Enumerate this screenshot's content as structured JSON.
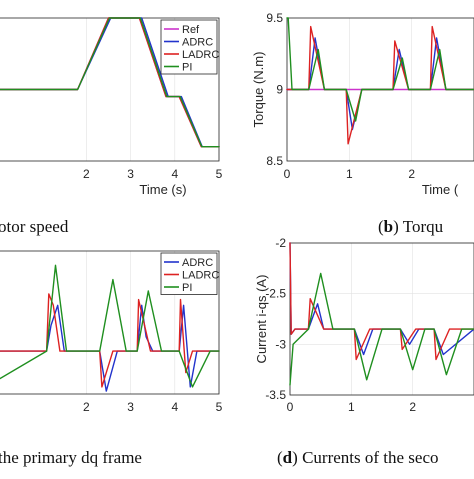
{
  "figure": {
    "captions": [
      {
        "label": "",
        "text": "otor speed"
      },
      {
        "label": "b",
        "text": " Torqu"
      },
      {
        "label": "",
        "text": "the primary dq frame"
      },
      {
        "label": "d",
        "text": " Currents of the seco"
      }
    ]
  },
  "colors": {
    "Ref": "#cc33cc",
    "ADRC": "#2233cc",
    "LADRC": "#dd2222",
    "PI": "#1f8f1f"
  },
  "chart_data": [
    {
      "id": "a",
      "type": "line",
      "xlabel": "Time (s)",
      "ylabel": "",
      "xlim": [
        0,
        5
      ],
      "ylim": [
        0,
        1
      ],
      "xticks": [
        2,
        3,
        4,
        5
      ],
      "yticks": [],
      "grid": true,
      "legend": {
        "placement": "top-right",
        "entries": [
          "Ref",
          "ADRC",
          "LADRC",
          "PI"
        ]
      },
      "series": [
        {
          "name": "Ref",
          "x": [
            0,
            1.8,
            2.5,
            3.2,
            3.8,
            4.1,
            4.6,
            5
          ],
          "y": [
            0.5,
            0.5,
            1.0,
            1.0,
            0.45,
            0.45,
            0.1,
            0.1
          ]
        },
        {
          "name": "ADRC",
          "x": [
            0,
            1.8,
            2.55,
            3.25,
            3.85,
            4.15,
            4.62,
            5
          ],
          "y": [
            0.5,
            0.5,
            1.0,
            1.0,
            0.45,
            0.45,
            0.1,
            0.1
          ]
        },
        {
          "name": "LADRC",
          "x": [
            0,
            1.8,
            2.5,
            3.2,
            3.8,
            4.1,
            4.6,
            5
          ],
          "y": [
            0.5,
            0.5,
            1.0,
            1.0,
            0.45,
            0.45,
            0.1,
            0.1
          ]
        },
        {
          "name": "PI",
          "x": [
            0,
            1.8,
            2.52,
            3.22,
            3.82,
            4.12,
            4.61,
            5
          ],
          "y": [
            0.5,
            0.5,
            1.0,
            1.0,
            0.45,
            0.45,
            0.1,
            0.1
          ]
        }
      ]
    },
    {
      "id": "b",
      "type": "line",
      "xlabel": "Time (",
      "ylabel": "Torque (N.m)",
      "xlim": [
        0,
        3
      ],
      "ylim": [
        8.5,
        9.5
      ],
      "xticks": [
        0,
        1,
        2
      ],
      "yticks": [
        8.5,
        9,
        9.5
      ],
      "grid": true,
      "series": [
        {
          "name": "Ref",
          "x": [
            0,
            3
          ],
          "y": [
            9.0,
            9.0
          ]
        },
        {
          "name": "ADRC",
          "x": [
            0,
            0.35,
            0.45,
            0.6,
            0.95,
            1.05,
            1.2,
            1.7,
            1.8,
            1.95,
            2.3,
            2.4,
            2.55,
            3
          ],
          "y": [
            9.0,
            9.0,
            9.36,
            9.0,
            9.0,
            8.72,
            9.0,
            9.0,
            9.28,
            9.0,
            9.0,
            9.36,
            9.0,
            9.0
          ]
        },
        {
          "name": "LADRC",
          "x": [
            0,
            0.35,
            0.38,
            0.6,
            0.95,
            0.98,
            1.2,
            1.7,
            1.73,
            1.95,
            2.3,
            2.33,
            2.55,
            3
          ],
          "y": [
            9.0,
            9.0,
            9.44,
            9.0,
            9.0,
            8.62,
            9.0,
            9.0,
            9.34,
            9.0,
            9.0,
            9.44,
            9.0,
            9.0
          ]
        },
        {
          "name": "PI",
          "x": [
            0,
            0.02,
            0.08,
            0.35,
            0.5,
            0.6,
            0.95,
            1.1,
            1.2,
            1.7,
            1.85,
            1.95,
            2.3,
            2.45,
            2.55,
            3
          ],
          "y": [
            9.5,
            9.5,
            9.0,
            9.0,
            9.28,
            9.0,
            9.0,
            8.78,
            9.0,
            9.0,
            9.22,
            9.0,
            9.0,
            9.28,
            9.0,
            9.0
          ]
        }
      ]
    },
    {
      "id": "c",
      "type": "line",
      "xlabel": "",
      "ylabel": "",
      "xlim": [
        0,
        5
      ],
      "ylim": [
        0,
        1
      ],
      "xticks": [
        2,
        3,
        4,
        5
      ],
      "yticks": [],
      "grid": true,
      "legend": {
        "placement": "top-right",
        "entries": [
          "ADRC",
          "LADRC",
          "PI"
        ]
      },
      "series": [
        {
          "name": "ADRC",
          "x": [
            0,
            1.1,
            1.2,
            1.35,
            1.5,
            2.3,
            2.45,
            2.7,
            3.15,
            3.25,
            3.35,
            3.5,
            4.1,
            4.2,
            4.35,
            4.5,
            5
          ],
          "y": [
            0.3,
            0.3,
            0.48,
            0.62,
            0.3,
            0.3,
            0.02,
            0.3,
            0.3,
            0.62,
            0.4,
            0.3,
            0.3,
            0.62,
            0.05,
            0.3,
            0.3
          ]
        },
        {
          "name": "LADRC",
          "x": [
            0,
            1.1,
            1.15,
            1.25,
            1.4,
            2.3,
            2.35,
            2.6,
            3.15,
            3.18,
            3.3,
            3.45,
            4.1,
            4.13,
            4.25,
            4.4,
            5
          ],
          "y": [
            0.3,
            0.3,
            0.7,
            0.62,
            0.3,
            0.3,
            0.05,
            0.3,
            0.3,
            0.66,
            0.5,
            0.3,
            0.3,
            0.66,
            0.15,
            0.3,
            0.3
          ]
        },
        {
          "name": "PI",
          "x": [
            0,
            1.1,
            1.3,
            1.55,
            2.3,
            2.6,
            2.9,
            3.15,
            3.4,
            3.7,
            4.1,
            4.4,
            4.8,
            5
          ],
          "y": [
            0.1,
            0.3,
            0.9,
            0.3,
            0.3,
            0.8,
            0.3,
            0.3,
            0.72,
            0.3,
            0.3,
            0.05,
            0.3,
            0.3
          ]
        }
      ]
    },
    {
      "id": "d",
      "type": "line",
      "xlabel": "",
      "ylabel": "Current i-qs (A)",
      "xlim": [
        0,
        3
      ],
      "ylim": [
        -3.5,
        -2
      ],
      "xticks": [
        0,
        1,
        2
      ],
      "yticks": [
        -2,
        -2.5,
        -3,
        -3.5
      ],
      "grid": true,
      "series": [
        {
          "name": "ADRC",
          "x": [
            0,
            0.02,
            0.08,
            0.3,
            0.45,
            0.55,
            0.75,
            1.05,
            1.2,
            1.35,
            1.8,
            1.95,
            2.1,
            2.35,
            2.5,
            3
          ],
          "y": [
            -2.0,
            -2.9,
            -2.85,
            -2.85,
            -2.6,
            -2.85,
            -2.85,
            -2.85,
            -3.1,
            -2.85,
            -2.85,
            -3.0,
            -2.85,
            -2.85,
            -3.1,
            -2.85
          ]
        },
        {
          "name": "LADRC",
          "x": [
            0,
            0.02,
            0.08,
            0.3,
            0.33,
            0.55,
            1.05,
            1.08,
            1.3,
            1.8,
            1.83,
            2.05,
            2.35,
            2.38,
            2.6,
            3
          ],
          "y": [
            -2.0,
            -2.9,
            -2.85,
            -2.85,
            -2.55,
            -2.85,
            -2.85,
            -3.15,
            -2.85,
            -2.85,
            -3.05,
            -2.85,
            -2.85,
            -3.15,
            -2.85,
            -2.85
          ]
        },
        {
          "name": "PI",
          "x": [
            0,
            0.05,
            0.3,
            0.5,
            0.7,
            1.05,
            1.25,
            1.5,
            1.8,
            2.0,
            2.2,
            2.35,
            2.55,
            2.8,
            3
          ],
          "y": [
            -3.4,
            -3.0,
            -2.85,
            -2.3,
            -2.85,
            -2.85,
            -3.35,
            -2.85,
            -2.85,
            -3.25,
            -2.85,
            -2.85,
            -3.3,
            -2.85,
            -2.85
          ]
        }
      ]
    }
  ]
}
